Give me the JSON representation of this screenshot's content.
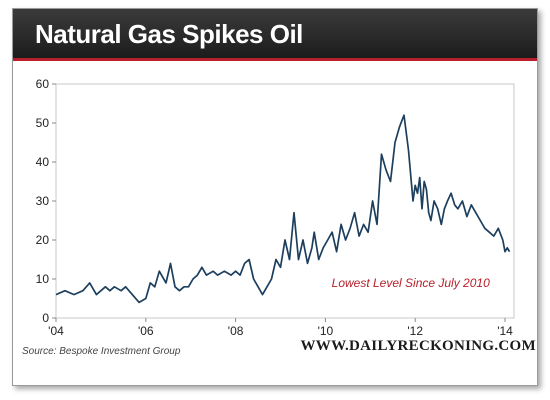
{
  "header": {
    "title": "Natural Gas Spikes Oil"
  },
  "footer": {
    "source": "Source: Bespoke Investment Group",
    "brand": "WWW.DAILYRECKONING.COM"
  },
  "colors": {
    "line": "#1d3f5e",
    "annotation": "#b7202a",
    "title_bar": "#2a2a2a",
    "accent": "#b7202a"
  },
  "chart_data": {
    "type": "line",
    "title": "Natural Gas Spikes Oil",
    "xlabel": "",
    "ylabel": "",
    "xlim": [
      2004,
      2014.2
    ],
    "ylim": [
      0,
      60
    ],
    "grid": false,
    "x_tick_values": [
      2004,
      2006,
      2008,
      2010,
      2012,
      2014
    ],
    "x_tick_labels": [
      "'04",
      "'06",
      "'08",
      "'10",
      "'12",
      "'14"
    ],
    "y_tick_values": [
      0,
      10,
      20,
      30,
      40,
      50,
      60
    ],
    "y_tick_labels": [
      "0",
      "10",
      "20",
      "30",
      "40",
      "50",
      "60"
    ],
    "annotation": {
      "text": "Lowest Level Since July 2010",
      "x": 2011.9,
      "y": 8
    },
    "series": [
      {
        "x": [
          2004.0,
          2004.2,
          2004.4,
          2004.6,
          2004.75,
          2004.9,
          2005.0,
          2005.1,
          2005.2,
          2005.3,
          2005.45,
          2005.55,
          2005.7,
          2005.85,
          2006.0,
          2006.1,
          2006.2,
          2006.3,
          2006.45,
          2006.55,
          2006.65,
          2006.75,
          2006.85,
          2006.95,
          2007.05,
          2007.15,
          2007.25,
          2007.35,
          2007.5,
          2007.6,
          2007.75,
          2007.9,
          2008.0,
          2008.1,
          2008.2,
          2008.3,
          2008.4,
          2008.5,
          2008.6,
          2008.7,
          2008.8,
          2008.9,
          2009.0,
          2009.1,
          2009.2,
          2009.3,
          2009.4,
          2009.5,
          2009.6,
          2009.7,
          2009.75,
          2009.85,
          2009.95,
          2010.05,
          2010.15,
          2010.25,
          2010.35,
          2010.45,
          2010.55,
          2010.65,
          2010.75,
          2010.85,
          2010.95,
          2011.05,
          2011.15,
          2011.25,
          2011.35,
          2011.45,
          2011.55,
          2011.65,
          2011.75,
          2011.85,
          2011.95,
          2012.0,
          2012.05,
          2012.1,
          2012.15,
          2012.2,
          2012.25,
          2012.3,
          2012.35,
          2012.42,
          2012.5,
          2012.58,
          2012.65,
          2012.72,
          2012.8,
          2012.88,
          2012.95,
          2013.05,
          2013.15,
          2013.25,
          2013.35,
          2013.45,
          2013.55,
          2013.65,
          2013.75,
          2013.85,
          2013.95,
          2014.0,
          2014.05,
          2014.1
        ],
        "y": [
          6,
          7,
          6,
          7,
          9,
          6,
          7,
          8,
          7,
          8,
          7,
          8,
          6,
          4,
          5,
          9,
          8,
          12,
          9,
          14,
          8,
          7,
          8,
          8,
          10,
          11,
          13,
          11,
          12,
          11,
          12,
          11,
          12,
          11,
          14,
          15,
          10,
          8,
          6,
          8,
          10,
          15,
          13,
          20,
          15,
          27,
          15,
          20,
          14,
          18,
          22,
          15,
          18,
          20,
          22,
          17,
          24,
          20,
          23,
          27,
          21,
          24,
          22,
          30,
          24,
          42,
          38,
          35,
          45,
          49,
          52,
          43,
          30,
          34,
          32,
          36,
          28,
          35,
          33,
          27,
          25,
          30,
          28,
          24,
          28,
          30,
          32,
          29,
          28,
          30,
          26,
          29,
          27,
          25,
          23,
          22,
          21,
          23,
          20,
          17,
          18,
          17
        ]
      }
    ]
  }
}
